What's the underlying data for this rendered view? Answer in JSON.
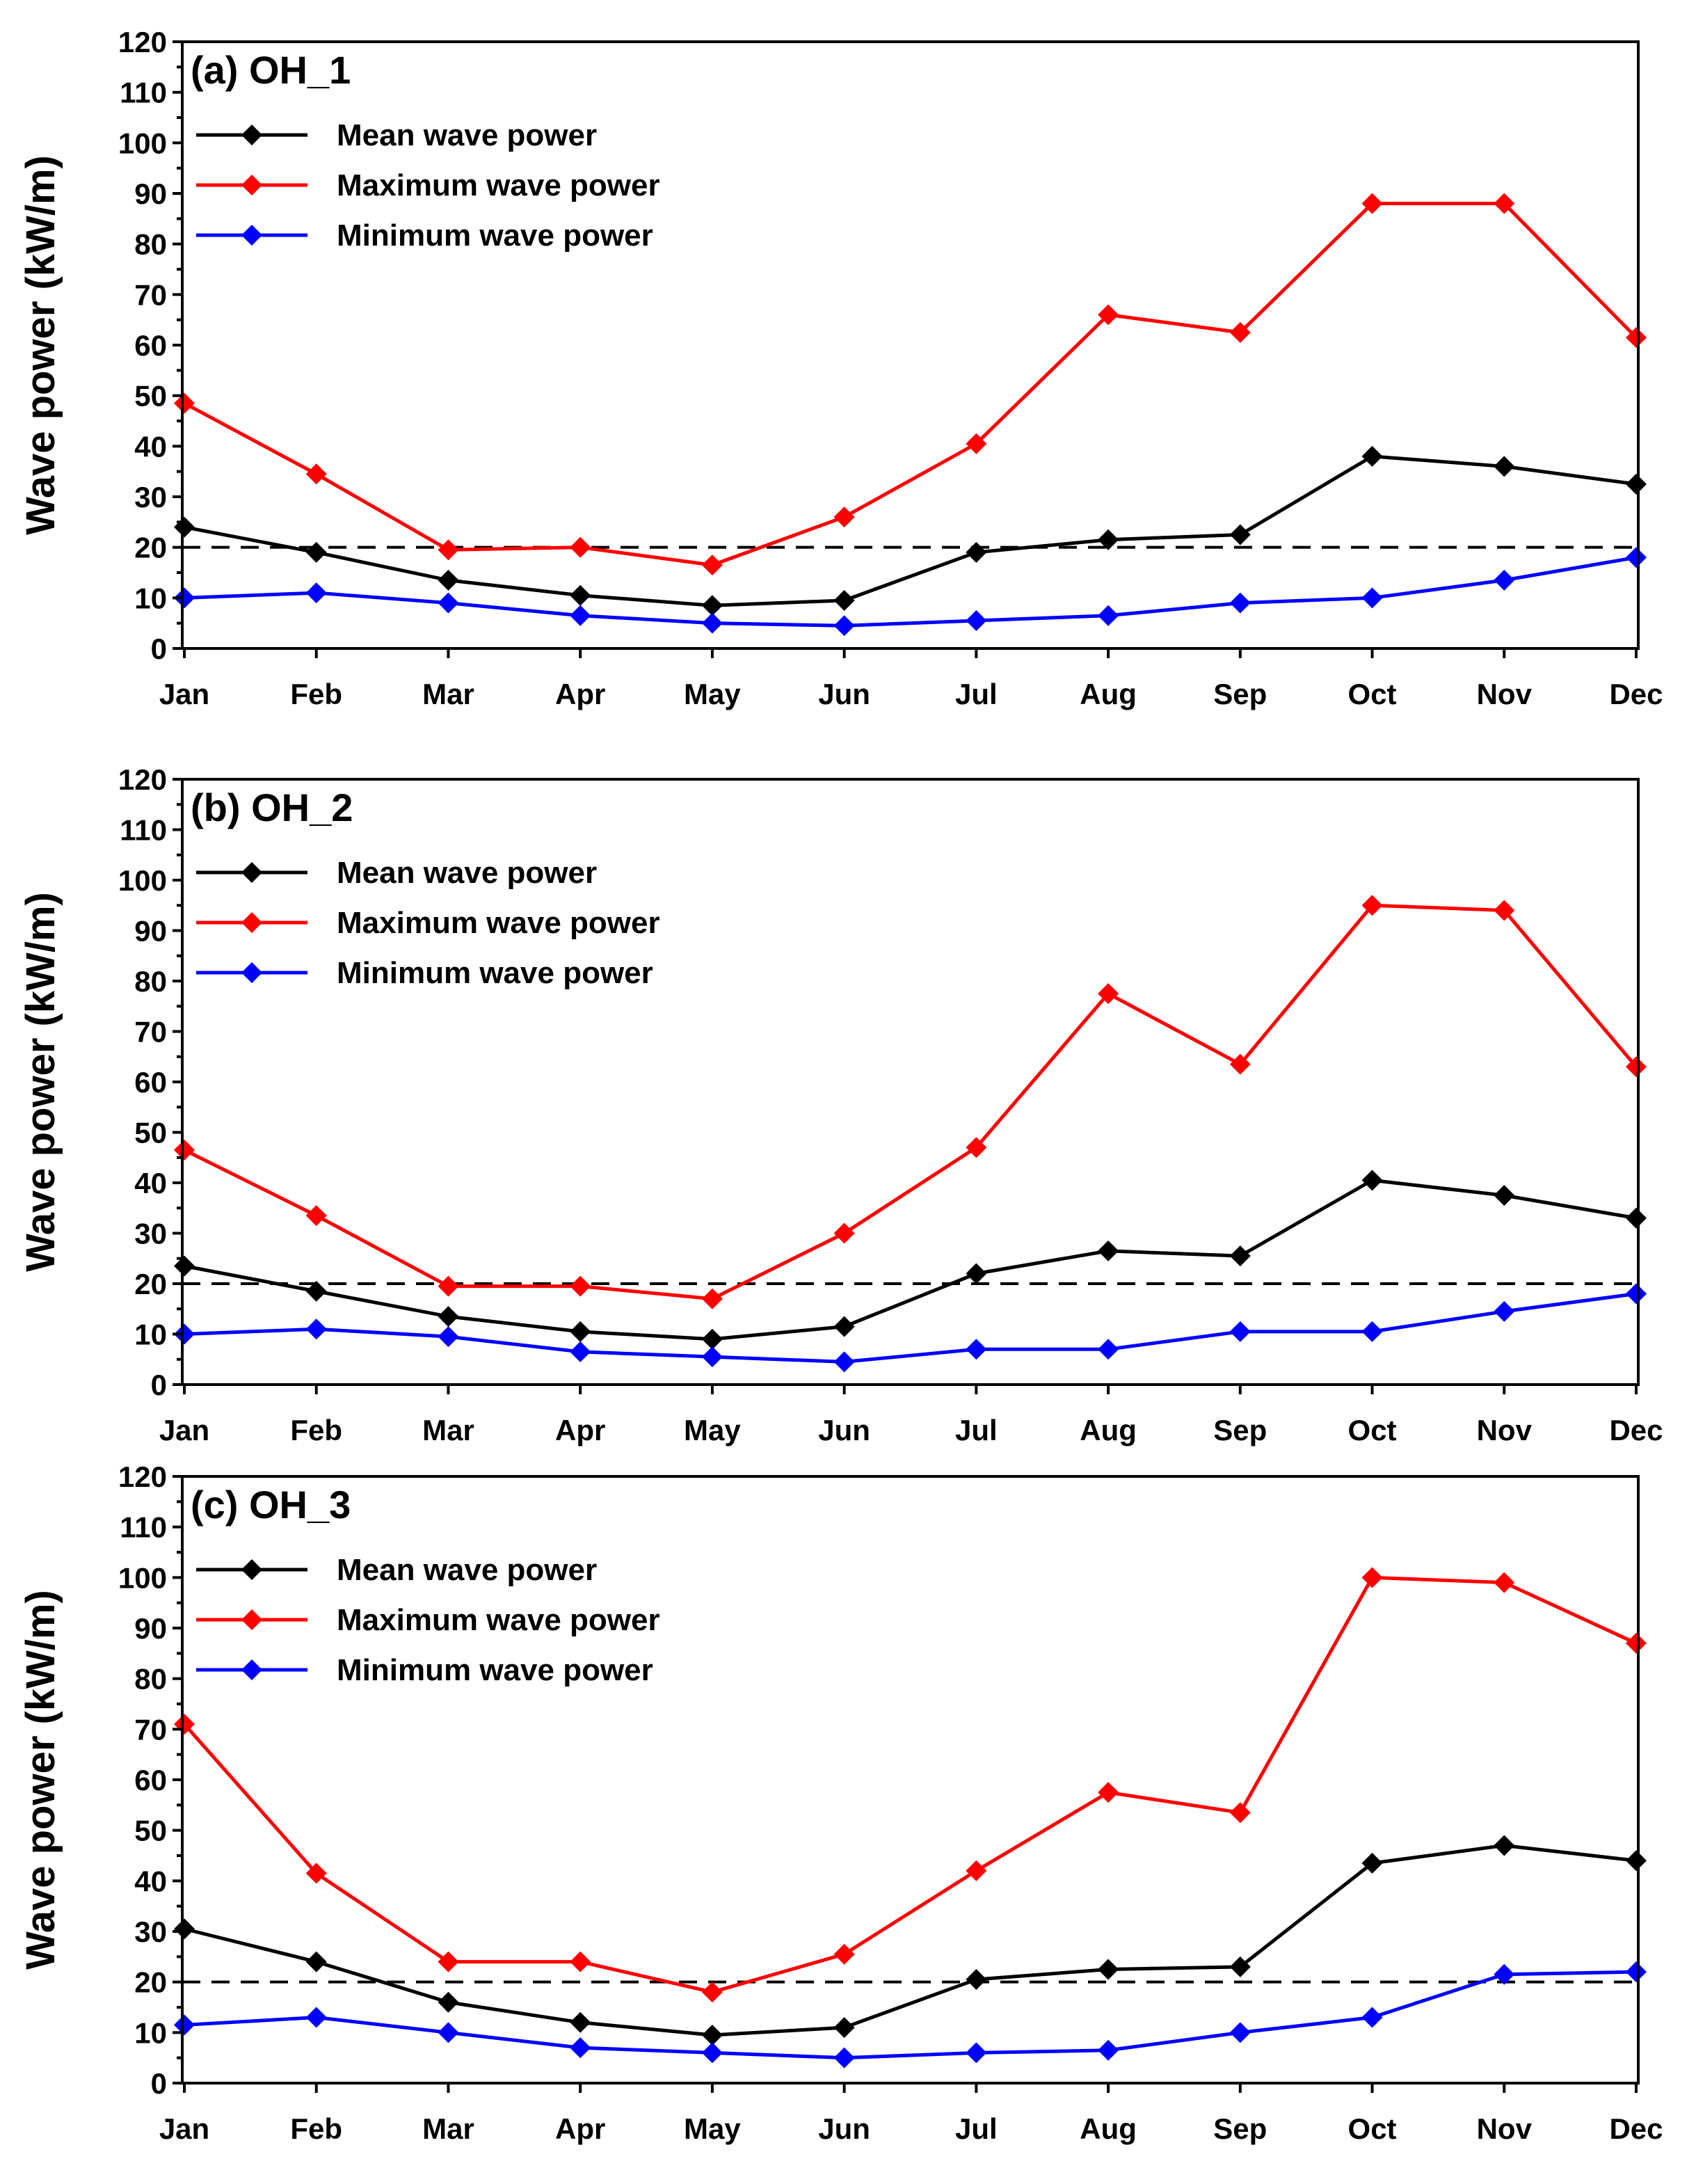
{
  "chart_data": [
    {
      "type": "line",
      "title": "(a) OH_1",
      "xlabel": "",
      "ylabel": "Wave power (kW/m)",
      "categories": [
        "Jan",
        "Feb",
        "Mar",
        "Apr",
        "May",
        "Jun",
        "Jul",
        "Aug",
        "Sep",
        "Oct",
        "Nov",
        "Dec"
      ],
      "ylim": [
        0,
        120
      ],
      "yticks": [
        0,
        10,
        20,
        30,
        40,
        50,
        60,
        70,
        80,
        90,
        100,
        110,
        120
      ],
      "reference_line": {
        "y": 20,
        "style": "dashed",
        "color": "#000000"
      },
      "legend_position": "top-left",
      "series": [
        {
          "name": "Mean wave power",
          "color": "#000000",
          "marker": "diamond",
          "values": [
            24,
            19,
            13.5,
            10.5,
            8.5,
            9.5,
            19,
            21.5,
            22.5,
            38,
            36,
            32.5
          ]
        },
        {
          "name": "Maximum wave power",
          "color": "#ff0000",
          "marker": "diamond",
          "values": [
            48.5,
            34.5,
            19.5,
            20,
            16.5,
            26,
            40.5,
            66,
            62.5,
            88,
            88,
            61.5
          ]
        },
        {
          "name": "Minimum wave power",
          "color": "#0000ff",
          "marker": "diamond",
          "values": [
            10,
            11,
            9,
            6.5,
            5,
            4.5,
            5.5,
            6.5,
            9,
            10,
            13.5,
            18
          ]
        }
      ]
    },
    {
      "type": "line",
      "title": "(b) OH_2",
      "xlabel": "",
      "ylabel": "Wave power (kW/m)",
      "categories": [
        "Jan",
        "Feb",
        "Mar",
        "Apr",
        "May",
        "Jun",
        "Jul",
        "Aug",
        "Sep",
        "Oct",
        "Nov",
        "Dec"
      ],
      "ylim": [
        0,
        120
      ],
      "yticks": [
        0,
        10,
        20,
        30,
        40,
        50,
        60,
        70,
        80,
        90,
        100,
        110,
        120
      ],
      "reference_line": {
        "y": 20,
        "style": "dashed",
        "color": "#000000"
      },
      "legend_position": "top-left",
      "series": [
        {
          "name": "Mean wave power",
          "color": "#000000",
          "marker": "diamond",
          "values": [
            23.5,
            18.5,
            13.5,
            10.5,
            9,
            11.5,
            22,
            26.5,
            25.5,
            40.5,
            37.5,
            33
          ]
        },
        {
          "name": "Maximum wave power",
          "color": "#ff0000",
          "marker": "diamond",
          "values": [
            46.5,
            33.5,
            19.5,
            19.5,
            17,
            30,
            47,
            77.5,
            63.5,
            95,
            94,
            63
          ]
        },
        {
          "name": "Minimum wave power",
          "color": "#0000ff",
          "marker": "diamond",
          "values": [
            10,
            11,
            9.5,
            6.5,
            5.5,
            4.5,
            7,
            7,
            10.5,
            10.5,
            14.5,
            18
          ]
        }
      ]
    },
    {
      "type": "line",
      "title": "(c) OH_3",
      "xlabel": "",
      "ylabel": "Wave power (kW/m)",
      "categories": [
        "Jan",
        "Feb",
        "Mar",
        "Apr",
        "May",
        "Jun",
        "Jul",
        "Aug",
        "Sep",
        "Oct",
        "Nov",
        "Dec"
      ],
      "ylim": [
        0,
        120
      ],
      "yticks": [
        0,
        10,
        20,
        30,
        40,
        50,
        60,
        70,
        80,
        90,
        100,
        110,
        120
      ],
      "reference_line": {
        "y": 20,
        "style": "dashed",
        "color": "#000000"
      },
      "legend_position": "top-left",
      "series": [
        {
          "name": "Mean wave power",
          "color": "#000000",
          "marker": "diamond",
          "values": [
            30.5,
            24,
            16,
            12,
            9.5,
            11,
            20.5,
            22.5,
            23,
            43.5,
            47,
            44
          ]
        },
        {
          "name": "Maximum wave power",
          "color": "#ff0000",
          "marker": "diamond",
          "values": [
            71,
            41.5,
            24,
            24,
            18,
            25.5,
            42,
            57.5,
            53.5,
            100,
            99,
            87
          ]
        },
        {
          "name": "Minimum wave power",
          "color": "#0000ff",
          "marker": "diamond",
          "values": [
            11.5,
            13,
            10,
            7,
            6,
            5,
            6,
            6.5,
            10,
            13,
            21.5,
            22
          ]
        }
      ]
    }
  ]
}
